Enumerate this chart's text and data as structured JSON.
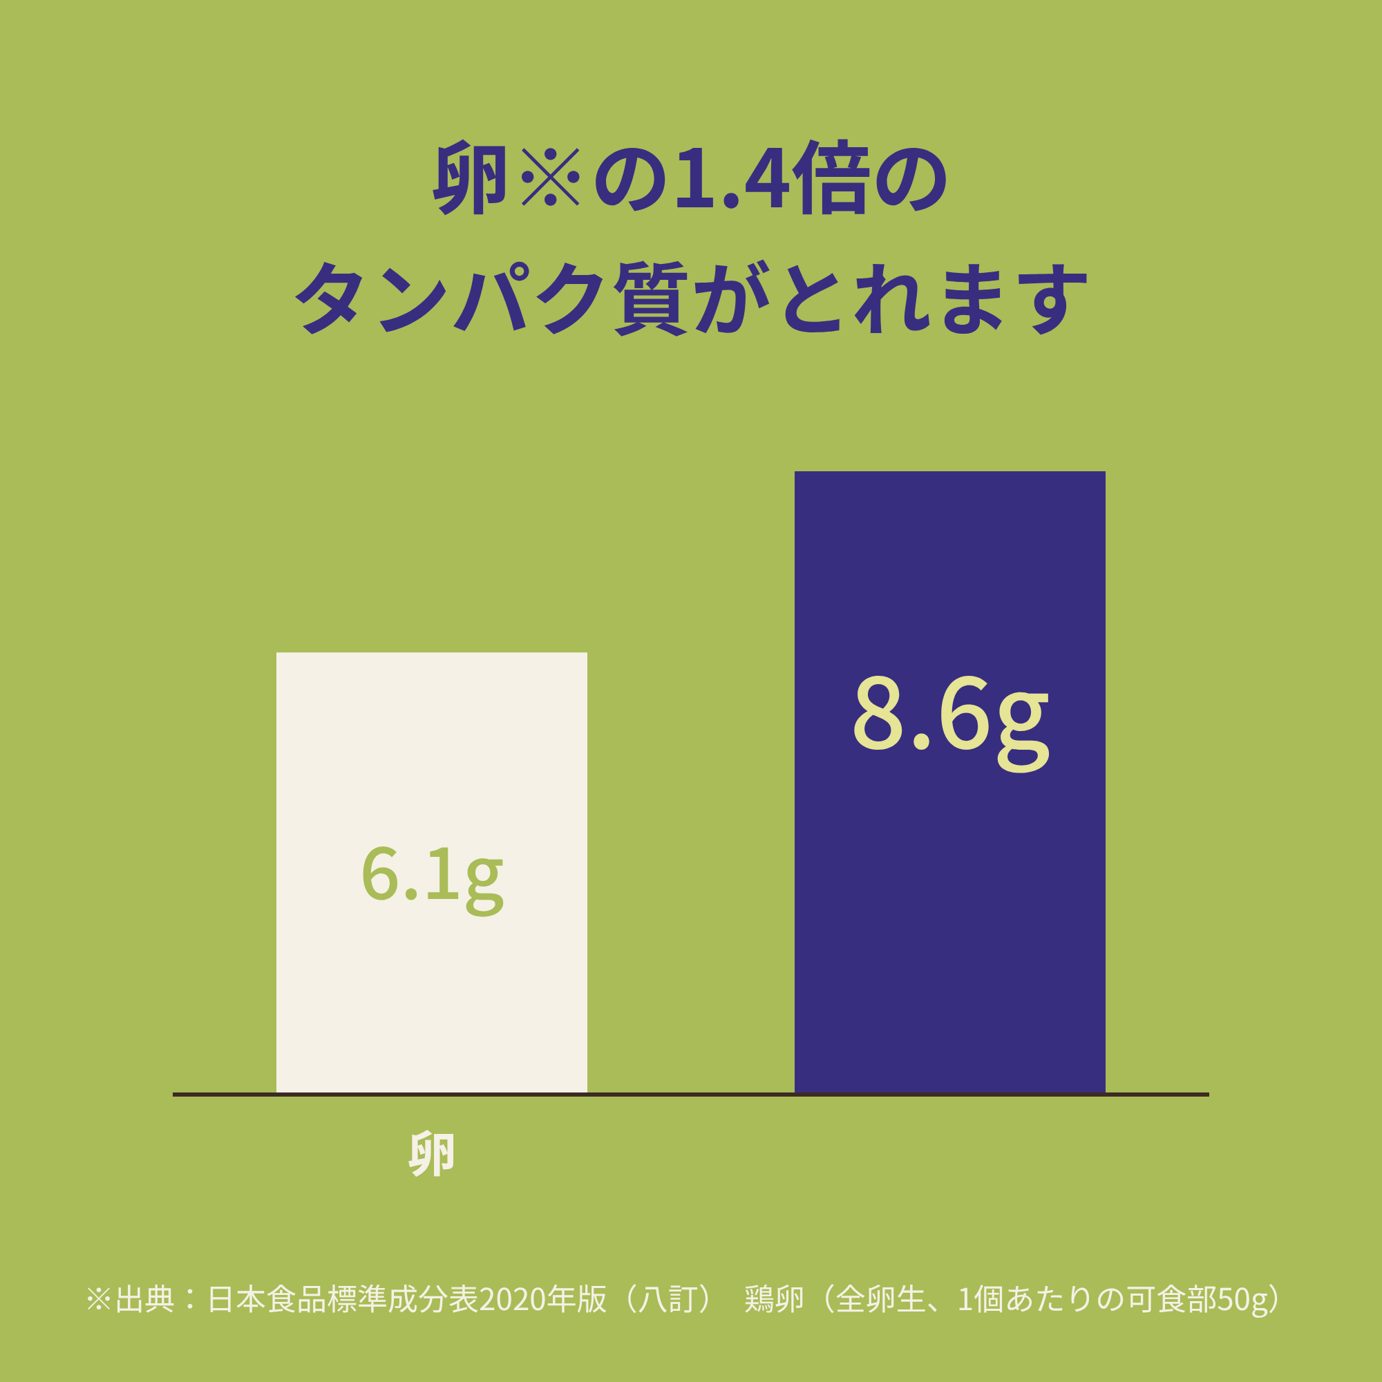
{
  "chart_data": {
    "type": "bar",
    "title": "卵※の1.4倍の",
    "subtitle": "タンパク質がとれます",
    "categories": [
      "卵",
      null
    ],
    "values": [
      6.1,
      8.6
    ],
    "colors": [
      "#f5f1e6",
      "#372e80"
    ],
    "value_labels": [
      "6.1g",
      "8.6g"
    ],
    "annotations": [
      "※出典：日本食品標準成分表2020年版（八訂）　鶏卵（全卵生、1個あたりの可食部50g）"
    ]
  }
}
